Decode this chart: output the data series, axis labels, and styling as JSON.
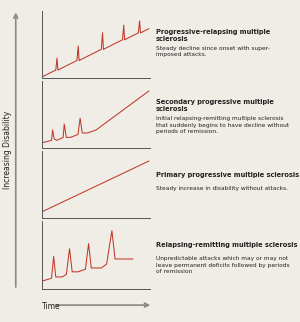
{
  "background_color": "#f0ece6",
  "line_color": "#c0392b",
  "axis_color": "#555555",
  "text_color": "#222222",
  "arrow_color": "#888888",
  "panels": [
    {
      "title": "Progressive-relapsing multiple sclerosis",
      "subtitle": "Steady decline since onset with super-\nimposed attacks.",
      "type": "progressive_relapsing"
    },
    {
      "title": "Secondary progressive multiple sclerosis",
      "subtitle": "Initial relapsing-remitting multiple sclerosis\nthat suddenly begins to have decline without\nperiods of remission.",
      "type": "secondary_progressive"
    },
    {
      "title": "Primary progressive multiple sclerosis",
      "subtitle": "Steady increase in disability without attacks.",
      "type": "primary_progressive"
    },
    {
      "title": "Relapsing-remitting multiple sclerosis",
      "subtitle": "Unpredictable attacks which may or may not\nleave permanent deficits followed by periods\nof remission",
      "type": "relapsing_remitting"
    }
  ],
  "xlabel": "Time",
  "ylabel": "Increasing Disability",
  "title_fontsize": 4.8,
  "subtitle_fontsize": 4.2,
  "label_fontsize": 5.5
}
